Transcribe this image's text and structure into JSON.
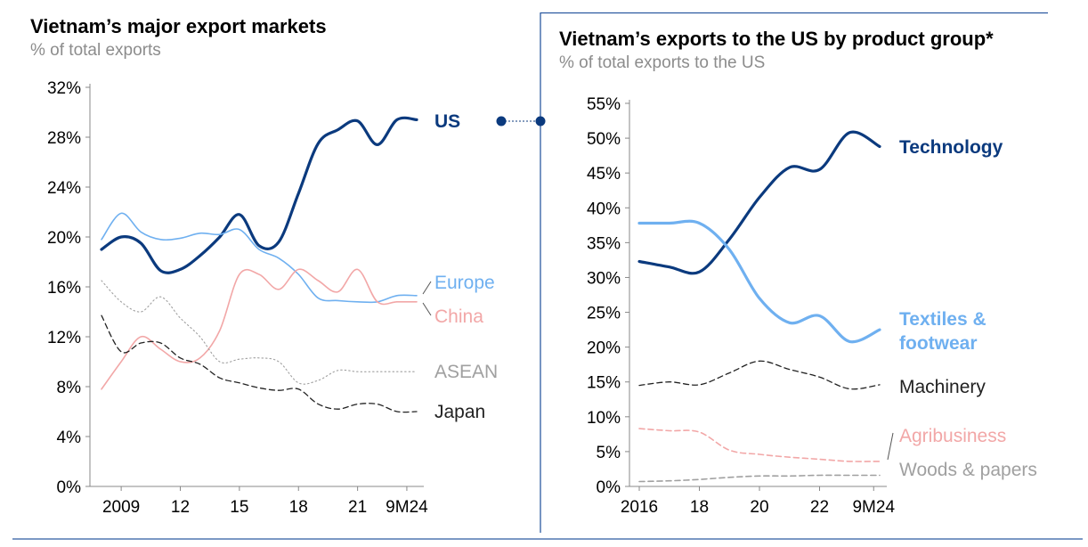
{
  "left_panel": {
    "title": "Vietnam’s major export markets",
    "subtitle": "% of total exports"
  },
  "right_panel": {
    "title": "Vietnam’s exports to the US by product group*",
    "subtitle": "% of total exports to the US"
  },
  "colors": {
    "dark_blue": "#0b3a7e",
    "light_blue": "#6fb0f0",
    "pink": "#f2a7a7",
    "gray": "#a0a0a0",
    "black": "#222222",
    "frame": "#2c5aa0"
  },
  "chart_data": [
    {
      "type": "line",
      "title": "Vietnam’s major export markets",
      "ylabel": "% of total exports",
      "xlim": [
        2008,
        2024
      ],
      "ylim": [
        0,
        32
      ],
      "yticks": [
        0,
        4,
        8,
        12,
        16,
        20,
        24,
        28,
        32
      ],
      "ytick_labels": [
        "0%",
        "4%",
        "8%",
        "12%",
        "16%",
        "20%",
        "24%",
        "28%",
        "32%"
      ],
      "xticks": [
        2009,
        2012,
        2015,
        2018,
        2021,
        2023.5
      ],
      "xtick_labels": [
        "2009",
        "12",
        "15",
        "18",
        "21",
        "9M24"
      ],
      "series": [
        {
          "name": "US",
          "color": "#0b3a7e",
          "style": "solid",
          "width": 3.2,
          "x": [
            2008,
            2009,
            2010,
            2011,
            2012,
            2013,
            2014,
            2015,
            2016,
            2017,
            2018,
            2019,
            2020,
            2021,
            2022,
            2023,
            2024
          ],
          "y": [
            19.0,
            20.0,
            19.5,
            17.3,
            17.4,
            18.5,
            20.0,
            21.8,
            19.3,
            19.6,
            23.5,
            27.5,
            28.6,
            29.3,
            27.4,
            29.4,
            29.4
          ]
        },
        {
          "name": "Europe",
          "color": "#6fb0f0",
          "style": "solid",
          "width": 1.6,
          "x": [
            2008,
            2009,
            2010,
            2011,
            2012,
            2013,
            2014,
            2015,
            2016,
            2017,
            2018,
            2019,
            2020,
            2021,
            2022,
            2023,
            2024
          ],
          "y": [
            19.8,
            21.9,
            20.4,
            19.8,
            19.9,
            20.3,
            20.2,
            20.6,
            19.0,
            18.3,
            17.0,
            15.1,
            14.9,
            14.8,
            14.8,
            15.3,
            15.3
          ]
        },
        {
          "name": "China",
          "color": "#f2a7a7",
          "style": "solid",
          "width": 1.6,
          "x": [
            2008,
            2009,
            2010,
            2011,
            2012,
            2013,
            2014,
            2015,
            2016,
            2017,
            2018,
            2019,
            2020,
            2021,
            2022,
            2023,
            2024
          ],
          "y": [
            7.8,
            10.0,
            12.0,
            11.0,
            10.0,
            10.3,
            12.5,
            17.0,
            17.0,
            15.8,
            17.4,
            16.5,
            15.6,
            17.4,
            14.8,
            14.8,
            14.8
          ]
        },
        {
          "name": "ASEAN",
          "color": "#a0a0a0",
          "style": "dotted",
          "width": 1.1,
          "x": [
            2008,
            2009,
            2010,
            2011,
            2012,
            2013,
            2014,
            2015,
            2016,
            2017,
            2018,
            2019,
            2020,
            2021,
            2022,
            2023,
            2024
          ],
          "y": [
            16.5,
            14.8,
            14.0,
            15.2,
            13.5,
            12.0,
            10.0,
            10.2,
            10.3,
            10.0,
            8.3,
            8.5,
            9.3,
            9.2,
            9.2,
            9.2,
            9.2
          ]
        },
        {
          "name": "Japan",
          "color": "#222222",
          "style": "dashed",
          "width": 1.3,
          "x": [
            2008,
            2009,
            2010,
            2011,
            2012,
            2013,
            2014,
            2015,
            2016,
            2017,
            2018,
            2019,
            2020,
            2021,
            2022,
            2023,
            2024
          ],
          "y": [
            13.7,
            10.8,
            11.5,
            11.5,
            10.3,
            9.8,
            8.7,
            8.3,
            7.9,
            7.7,
            7.8,
            6.6,
            6.2,
            6.6,
            6.6,
            6.0,
            6.0
          ]
        }
      ]
    },
    {
      "type": "line",
      "title": "Vietnam’s exports to the US by product group*",
      "ylabel": "% of total exports to the US",
      "xlim": [
        2016,
        2024
      ],
      "ylim": [
        0,
        55
      ],
      "yticks": [
        0,
        5,
        10,
        15,
        20,
        25,
        30,
        35,
        40,
        45,
        50,
        55
      ],
      "ytick_labels": [
        "0%",
        "5%",
        "10%",
        "15%",
        "20%",
        "25%",
        "30%",
        "35%",
        "40%",
        "45%",
        "50%",
        "55%"
      ],
      "xticks": [
        2016,
        2018,
        2020,
        2022,
        2023.8
      ],
      "xtick_labels": [
        "2016",
        "18",
        "20",
        "22",
        "9M24"
      ],
      "series": [
        {
          "name": "Technology",
          "color": "#0b3a7e",
          "style": "solid",
          "width": 3.2,
          "x": [
            2016,
            2017,
            2018,
            2019,
            2020,
            2021,
            2022,
            2023,
            2024
          ],
          "y": [
            32.3,
            31.5,
            30.8,
            35.5,
            41.5,
            45.8,
            45.5,
            50.8,
            48.8
          ]
        },
        {
          "name": "Textiles & footwear",
          "color": "#6fb0f0",
          "style": "solid",
          "width": 3.2,
          "x": [
            2016,
            2017,
            2018,
            2019,
            2020,
            2021,
            2022,
            2023,
            2024
          ],
          "y": [
            37.8,
            37.8,
            37.8,
            34.0,
            27.0,
            23.5,
            24.5,
            20.8,
            22.5
          ]
        },
        {
          "name": "Machinery",
          "color": "#222222",
          "style": "dashed",
          "width": 1.3,
          "x": [
            2016,
            2017,
            2018,
            2019,
            2020,
            2021,
            2022,
            2023,
            2024
          ],
          "y": [
            14.5,
            15.0,
            14.6,
            16.3,
            18.0,
            16.8,
            15.7,
            14.0,
            14.6
          ]
        },
        {
          "name": "Agribusiness",
          "color": "#f2a7a7",
          "style": "dashed",
          "width": 1.6,
          "x": [
            2016,
            2017,
            2018,
            2019,
            2020,
            2021,
            2022,
            2023,
            2024
          ],
          "y": [
            8.3,
            8.0,
            7.8,
            5.2,
            4.6,
            4.2,
            3.9,
            3.6,
            3.6
          ]
        },
        {
          "name": "Woods & papers",
          "color": "#a0a0a0",
          "style": "dashed",
          "width": 1.6,
          "x": [
            2016,
            2017,
            2018,
            2019,
            2020,
            2021,
            2022,
            2023,
            2024
          ],
          "y": [
            0.7,
            0.8,
            1.0,
            1.3,
            1.5,
            1.5,
            1.6,
            1.6,
            1.6
          ]
        }
      ],
      "labels": {
        "Technology": [
          "Technology"
        ],
        "Textiles & footwear": [
          "Textiles &",
          "footwear"
        ],
        "Machinery": [
          "Machinery"
        ],
        "Agribusiness": [
          "Agribusiness"
        ],
        "Woods & papers": [
          "Woods & papers"
        ]
      }
    }
  ]
}
